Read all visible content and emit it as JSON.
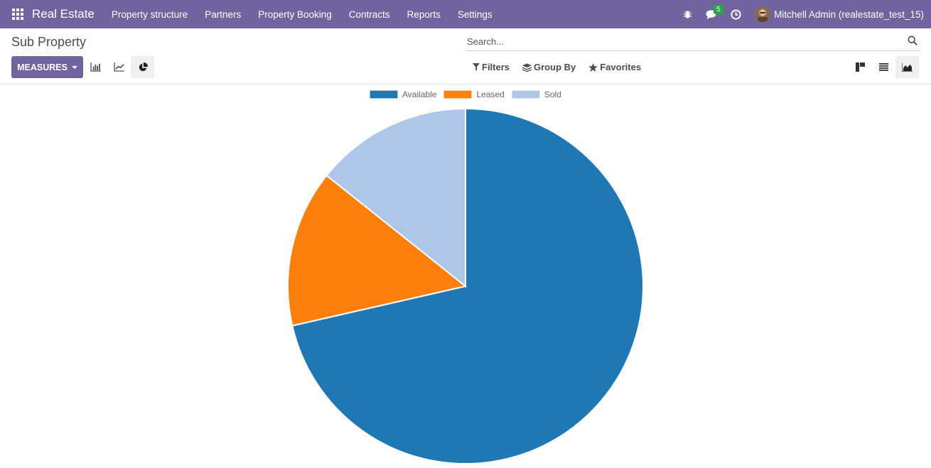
{
  "navbar": {
    "brand": "Real Estate",
    "menu": [
      "Property structure",
      "Partners",
      "Property Booking",
      "Contracts",
      "Reports",
      "Settings"
    ],
    "message_count": "5",
    "user": "Mitchell Admin (realestate_test_15)",
    "color": "#71639e"
  },
  "control_panel": {
    "title": "Sub Property",
    "search_placeholder": "Search...",
    "measures_label": "MEASURES",
    "filters_label": "Filters",
    "groupby_label": "Group By",
    "favorites_label": "Favorites"
  },
  "chart_data": {
    "type": "pie",
    "categories": [
      "Available",
      "Leased",
      "Sold"
    ],
    "values": [
      5,
      1,
      1
    ],
    "colors": [
      "#1f77b4",
      "#ff7f0e",
      "#aec7e8"
    ],
    "legend_position": "top"
  }
}
